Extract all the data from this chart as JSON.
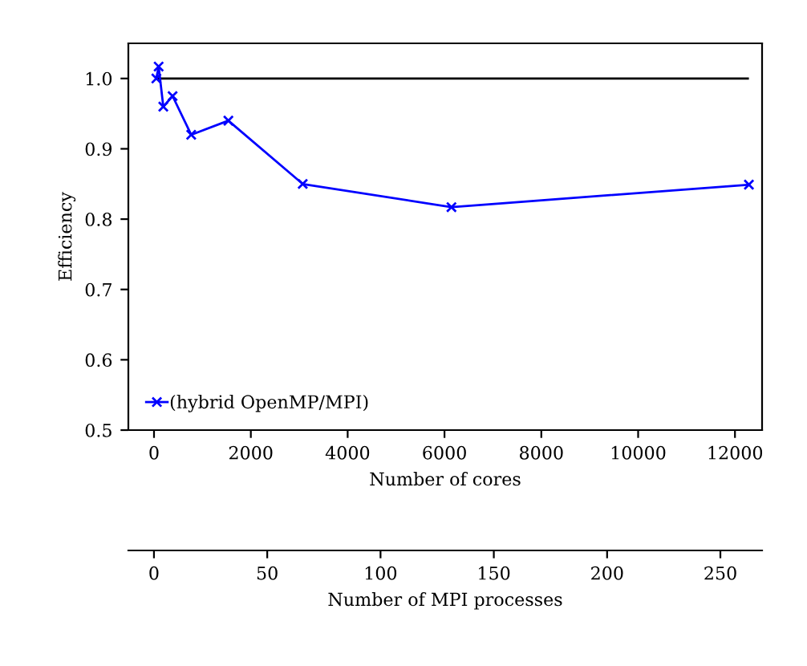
{
  "chart_data": {
    "type": "line",
    "xlabel": "Number of cores",
    "ylabel": "Efficiency",
    "x2label": "Number of MPI processes",
    "series": [
      {
        "name": "(hybrid OpenMP/MPI)",
        "color": "#0000ff",
        "x": [
          48,
          96,
          192,
          384,
          768,
          1536,
          3072,
          6144,
          12288
        ],
        "values": [
          1.0,
          1.017,
          0.96,
          0.975,
          0.92,
          0.94,
          0.85,
          0.817,
          0.849
        ]
      }
    ],
    "xlim": [
      -530,
      12560
    ],
    "xticks": [
      0,
      2000,
      4000,
      6000,
      8000,
      10000,
      12000
    ],
    "ylim": [
      0.5,
      1.05
    ],
    "yticks": [
      0.5,
      0.6,
      0.7,
      0.8,
      0.9,
      {
        "value": 1.0,
        "label": "1.0"
      }
    ],
    "x2lim": [
      -11.3,
      268.4
    ],
    "x2ticks": [
      0,
      50,
      100,
      150,
      200,
      250
    ],
    "ref_lines": [
      {
        "axis": "y",
        "value": 1.0,
        "color": "#000000"
      }
    ],
    "marker": "cross",
    "line_style": "solid",
    "legend": "bottom left",
    "grid": false
  }
}
